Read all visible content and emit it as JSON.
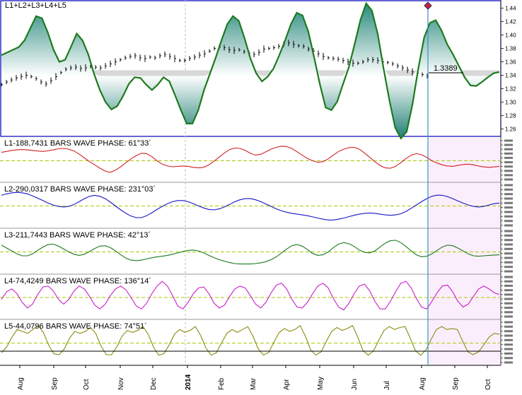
{
  "chart_data": [
    {
      "type": "line",
      "title": "L1+L2+L3+L4+L5",
      "y_ticks": [
        "1.44",
        "1.42",
        "1.40",
        "1.38",
        "1.36",
        "1.34",
        "1.32",
        "1.30",
        "1.28",
        "1.26"
      ],
      "ylim": [
        1.25,
        1.45
      ],
      "last_price_label": "1.3389",
      "last_price": 1.3389,
      "series": [
        {
          "name": "price",
          "values": [
            1.326,
            1.33,
            1.333,
            1.336,
            1.338,
            1.34,
            1.338,
            1.335,
            1.33,
            1.327,
            1.332,
            1.338,
            1.344,
            1.349,
            1.351,
            1.352,
            1.35,
            1.351,
            1.353,
            1.352,
            1.351,
            1.354,
            1.357,
            1.36,
            1.363,
            1.366,
            1.368,
            1.369,
            1.366,
            1.365,
            1.367,
            1.366,
            1.369,
            1.371,
            1.368,
            1.365,
            1.362,
            1.362,
            1.365,
            1.367,
            1.37,
            1.372,
            1.376,
            1.38,
            1.382,
            1.381,
            1.378,
            1.377,
            1.378,
            1.375,
            1.373,
            1.371,
            1.374,
            1.379,
            1.38,
            1.381,
            1.383,
            1.386,
            1.388,
            1.386,
            1.384,
            1.383,
            1.379,
            1.376,
            1.372,
            1.368,
            1.366,
            1.365,
            1.364,
            1.362,
            1.36,
            1.358,
            1.358,
            1.36,
            1.363,
            1.363,
            1.362,
            1.36,
            1.359,
            1.357,
            1.354,
            1.351,
            1.348,
            1.345,
            1.343,
            1.341,
            1.339
          ]
        },
        {
          "name": "cycle composite",
          "values": [
            1.37,
            1.374,
            1.378,
            1.382,
            1.392,
            1.41,
            1.428,
            1.425,
            1.404,
            1.378,
            1.36,
            1.363,
            1.382,
            1.402,
            1.392,
            1.371,
            1.342,
            1.318,
            1.3,
            1.289,
            1.294,
            1.309,
            1.327,
            1.337,
            1.336,
            1.326,
            1.318,
            1.326,
            1.337,
            1.331,
            1.31,
            1.288,
            1.268,
            1.268,
            1.288,
            1.318,
            1.342,
            1.366,
            1.392,
            1.416,
            1.428,
            1.421,
            1.395,
            1.365,
            1.343,
            1.331,
            1.338,
            1.35,
            1.37,
            1.392,
            1.416,
            1.433,
            1.429,
            1.405,
            1.367,
            1.327,
            1.292,
            1.288,
            1.301,
            1.327,
            1.352,
            1.386,
            1.422,
            1.447,
            1.436,
            1.401,
            1.35,
            1.303,
            1.262,
            1.246,
            1.256,
            1.297,
            1.35,
            1.396,
            1.418,
            1.422,
            1.407,
            1.386,
            1.371,
            1.354,
            1.337,
            1.325,
            1.324,
            1.33,
            1.337,
            1.343,
            1.345
          ]
        }
      ]
    },
    {
      "type": "line",
      "title": "L1-188,7431 BARS WAVE PHASE: 61°33´",
      "series": [
        {
          "name": "L1",
          "color": "#d42020",
          "values": [
            0.45,
            0.5,
            0.55,
            0.58,
            0.6,
            0.58,
            0.55,
            0.52,
            0.5,
            0.53,
            0.58,
            0.64,
            0.66,
            0.62,
            0.52,
            0.35,
            0.15,
            -0.05,
            -0.22,
            -0.4,
            -0.55,
            -0.62,
            -0.5,
            -0.32,
            -0.1,
            0.1,
            0.28,
            0.4,
            0.38,
            0.22,
            0.0,
            -0.18,
            -0.28,
            -0.32,
            -0.3,
            -0.28,
            -0.3,
            -0.35,
            -0.38,
            -0.35,
            -0.22,
            -0.02,
            0.2,
            0.42,
            0.6,
            0.68,
            0.66,
            0.55,
            0.4,
            0.3,
            0.35,
            0.48,
            0.62,
            0.72,
            0.78,
            0.76,
            0.65,
            0.48,
            0.3,
            0.12,
            0.0,
            -0.08,
            -0.05,
            0.1,
            0.3,
            0.5,
            0.62,
            0.7,
            0.72,
            0.62,
            0.42,
            0.18,
            -0.05,
            -0.25,
            -0.38,
            -0.4,
            -0.3,
            -0.1,
            0.12,
            0.3,
            0.38,
            0.32,
            0.18,
            0.0,
            -0.12,
            -0.22,
            -0.28,
            -0.3,
            -0.25,
            -0.2,
            -0.18,
            -0.22,
            -0.28,
            -0.33,
            -0.35,
            -0.33,
            -0.3
          ]
        }
      ]
    },
    {
      "type": "line",
      "title": "L2-290,0317 BARS WAVE PHASE: 231°03´",
      "series": [
        {
          "name": "L2",
          "color": "#1515c8",
          "values": [
            0.55,
            0.62,
            0.68,
            0.7,
            0.68,
            0.62,
            0.52,
            0.4,
            0.28,
            0.15,
            0.05,
            -0.02,
            -0.05,
            -0.02,
            0.08,
            0.22,
            0.38,
            0.5,
            0.55,
            0.5,
            0.38,
            0.2,
            0.0,
            -0.2,
            -0.38,
            -0.52,
            -0.6,
            -0.6,
            -0.5,
            -0.35,
            -0.18,
            -0.02,
            0.12,
            0.22,
            0.28,
            0.28,
            0.22,
            0.12,
            0.0,
            -0.1,
            -0.18,
            -0.2,
            -0.15,
            -0.05,
            0.08,
            0.22,
            0.32,
            0.38,
            0.38,
            0.32,
            0.22,
            0.1,
            -0.02,
            -0.15,
            -0.25,
            -0.32,
            -0.38,
            -0.42,
            -0.46,
            -0.5,
            -0.56,
            -0.62,
            -0.68,
            -0.72,
            -0.72,
            -0.68,
            -0.62,
            -0.55,
            -0.48,
            -0.42,
            -0.38,
            -0.36,
            -0.38,
            -0.42,
            -0.46,
            -0.48,
            -0.46,
            -0.4,
            -0.28,
            -0.12,
            0.05,
            0.22,
            0.38,
            0.5,
            0.56,
            0.55,
            0.48,
            0.38,
            0.26,
            0.15,
            0.05,
            -0.02,
            -0.05,
            -0.02,
            0.05,
            0.12,
            0.15
          ]
        }
      ]
    },
    {
      "type": "line",
      "title": "L3-211,7443 BARS WAVE PHASE: 42°13´",
      "series": [
        {
          "name": "L3",
          "color": "#1a7a1a",
          "values": [
            0.35,
            0.2,
            0.05,
            -0.1,
            -0.2,
            -0.2,
            -0.1,
            0.08,
            0.25,
            0.38,
            0.4,
            0.3,
            0.15,
            0.0,
            -0.12,
            -0.18,
            -0.12,
            0.02,
            0.18,
            0.3,
            0.32,
            0.22,
            0.05,
            -0.15,
            -0.32,
            -0.42,
            -0.45,
            -0.42,
            -0.36,
            -0.3,
            -0.25,
            -0.22,
            -0.18,
            -0.12,
            -0.05,
            0.02,
            0.08,
            0.1,
            0.05,
            -0.05,
            -0.18,
            -0.3,
            -0.4,
            -0.48,
            -0.55,
            -0.6,
            -0.62,
            -0.62,
            -0.62,
            -0.6,
            -0.56,
            -0.5,
            -0.4,
            -0.25,
            -0.05,
            0.15,
            0.32,
            0.38,
            0.3,
            0.12,
            -0.08,
            -0.18,
            -0.15,
            0.0,
            0.22,
            0.4,
            0.48,
            0.42,
            0.28,
            0.1,
            -0.02,
            -0.05,
            0.05,
            0.25,
            0.45,
            0.58,
            0.6,
            0.48,
            0.28,
            0.05,
            -0.15,
            -0.25,
            -0.22,
            -0.1,
            0.08,
            0.25,
            0.35,
            0.32,
            0.2,
            0.05,
            -0.1,
            -0.2,
            -0.22,
            -0.2,
            -0.18,
            -0.16,
            -0.15
          ]
        }
      ]
    },
    {
      "type": "line",
      "title": "L4-74,4249 BARS WAVE PHASE: 136°14´",
      "series": [
        {
          "name": "L4",
          "color": "#c81ec8",
          "values": [
            -0.1,
            0.3,
            0.45,
            0.2,
            -0.25,
            -0.55,
            -0.35,
            0.15,
            0.55,
            0.6,
            0.35,
            -0.1,
            -0.35,
            -0.1,
            0.35,
            0.6,
            0.45,
            0.05,
            -0.4,
            -0.6,
            -0.35,
            0.1,
            0.45,
            0.6,
            0.4,
            0.0,
            -0.45,
            -0.6,
            -0.3,
            0.2,
            0.6,
            0.85,
            0.6,
            0.1,
            -0.45,
            -0.6,
            -0.25,
            0.2,
            0.5,
            0.55,
            0.2,
            -0.3,
            -0.55,
            -0.4,
            0.05,
            0.45,
            0.6,
            0.5,
            0.1,
            -0.35,
            -0.55,
            -0.25,
            0.25,
            0.65,
            0.75,
            0.45,
            -0.1,
            -0.5,
            -0.55,
            -0.25,
            0.2,
            0.6,
            0.75,
            0.5,
            -0.05,
            -0.5,
            -0.65,
            -0.3,
            0.2,
            0.6,
            0.7,
            0.35,
            -0.2,
            -0.6,
            -0.6,
            -0.2,
            0.3,
            0.75,
            0.85,
            0.5,
            -0.05,
            -0.5,
            -0.6,
            -0.2,
            0.25,
            0.6,
            0.65,
            0.3,
            -0.2,
            -0.5,
            -0.35,
            0.05,
            0.45,
            0.6,
            0.45,
            0.25,
            0.15
          ]
        }
      ]
    },
    {
      "type": "line",
      "title": "L5-44,0796 BARS WAVE PHASE: 74°51´",
      "series": [
        {
          "name": "L5",
          "color": "#8a8a10",
          "values": [
            -0.5,
            -0.2,
            0.3,
            0.7,
            0.6,
            0.5,
            0.7,
            0.9,
            0.55,
            -0.1,
            -0.55,
            -0.6,
            -0.3,
            0.25,
            0.6,
            0.5,
            0.6,
            0.8,
            0.5,
            -0.15,
            -0.6,
            -0.6,
            -0.2,
            0.35,
            0.65,
            0.55,
            0.65,
            0.85,
            0.45,
            -0.2,
            -0.62,
            -0.55,
            -0.1,
            0.45,
            0.7,
            0.55,
            0.65,
            0.85,
            0.4,
            -0.25,
            -0.62,
            -0.5,
            0.0,
            0.5,
            0.7,
            0.55,
            0.7,
            0.85,
            0.35,
            -0.3,
            -0.62,
            -0.48,
            0.05,
            0.55,
            0.75,
            0.6,
            0.7,
            0.9,
            0.35,
            -0.35,
            -0.62,
            -0.45,
            0.1,
            0.6,
            0.8,
            0.65,
            0.75,
            0.9,
            0.3,
            -0.4,
            -0.62,
            -0.4,
            0.15,
            0.65,
            0.85,
            0.7,
            0.8,
            0.85,
            0.25,
            -0.4,
            -0.62,
            -0.35,
            0.2,
            0.7,
            0.85,
            0.7,
            0.75,
            0.7,
            0.1,
            -0.45,
            -0.6,
            -0.45,
            -0.1,
            0.3,
            0.5,
            0.45
          ]
        }
      ]
    }
  ],
  "x_axis": {
    "tick_labels": [
      "Aug",
      "Sep",
      "Oct",
      "Nov",
      "Dec",
      "2014",
      "Feb",
      "Mar",
      "Apr",
      "May",
      "Jun",
      "Jul",
      "Aug",
      "Sep",
      "Oct"
    ]
  },
  "colors": {
    "main_border": "#2323c8",
    "upper_fill": "#2a8a7e",
    "lower_fill": "#1f7f74",
    "cycle_line": "#1e7a1e",
    "forecast_shade": "#fbeefc",
    "cursor_line": "#3a8fbf",
    "zero_line": "#a8c800"
  }
}
